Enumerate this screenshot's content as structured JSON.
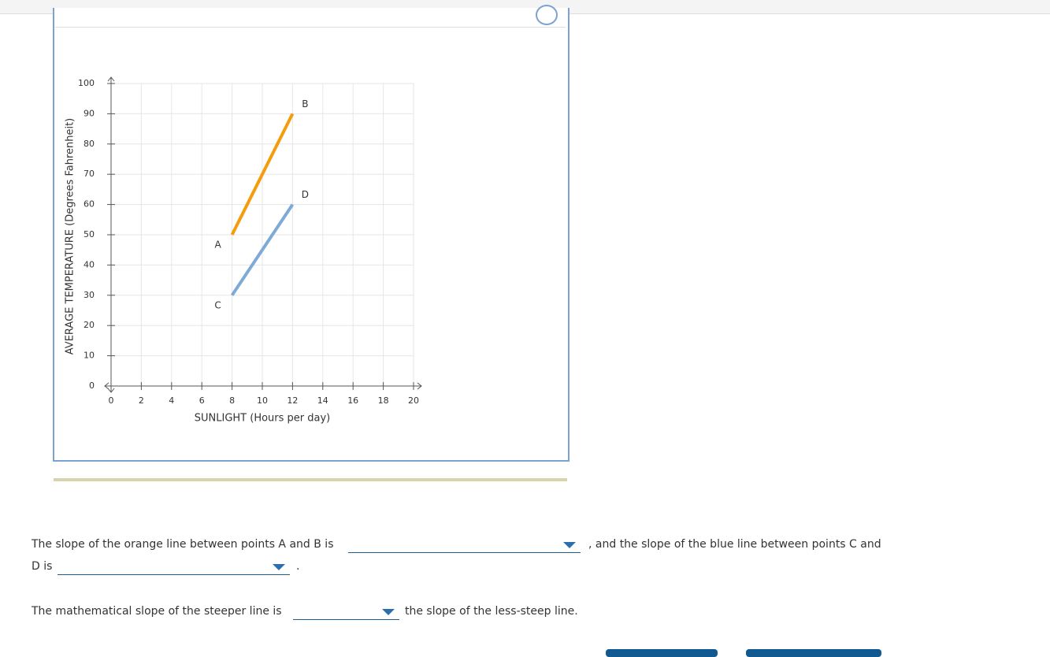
{
  "chart_data": {
    "type": "line",
    "x_label": "SUNLIGHT (Hours per day)",
    "y_label": "AVERAGE TEMPERATURE (Degrees Fahrenheit)",
    "series": [
      {
        "color": "#f59c0c",
        "x": [
          8,
          12
        ],
        "values": [
          50,
          90
        ],
        "point_labels": [
          "A",
          "B"
        ]
      },
      {
        "color": "#7eaad6",
        "x": [
          8,
          12
        ],
        "values": [
          30,
          60
        ],
        "point_labels": [
          "C",
          "D"
        ]
      }
    ],
    "xlim": [
      0,
      20
    ],
    "xticks": [
      0,
      2,
      4,
      6,
      8,
      10,
      12,
      14,
      16,
      18,
      20
    ],
    "ylim": [
      0,
      100
    ],
    "yticks": [
      0,
      10,
      20,
      30,
      40,
      50,
      60,
      70,
      80,
      90,
      100
    ],
    "grid": true
  },
  "question": {
    "sentence1_start": "The slope of the orange line between points A and B is",
    "sentence1_end": ", and the slope of the blue line between points C and",
    "sentence2_start": "D is",
    "sentence2_end": ".",
    "sentence3_start": "The mathematical slope of the steeper line is",
    "sentence3_end": "the slope of the less-steep line."
  }
}
